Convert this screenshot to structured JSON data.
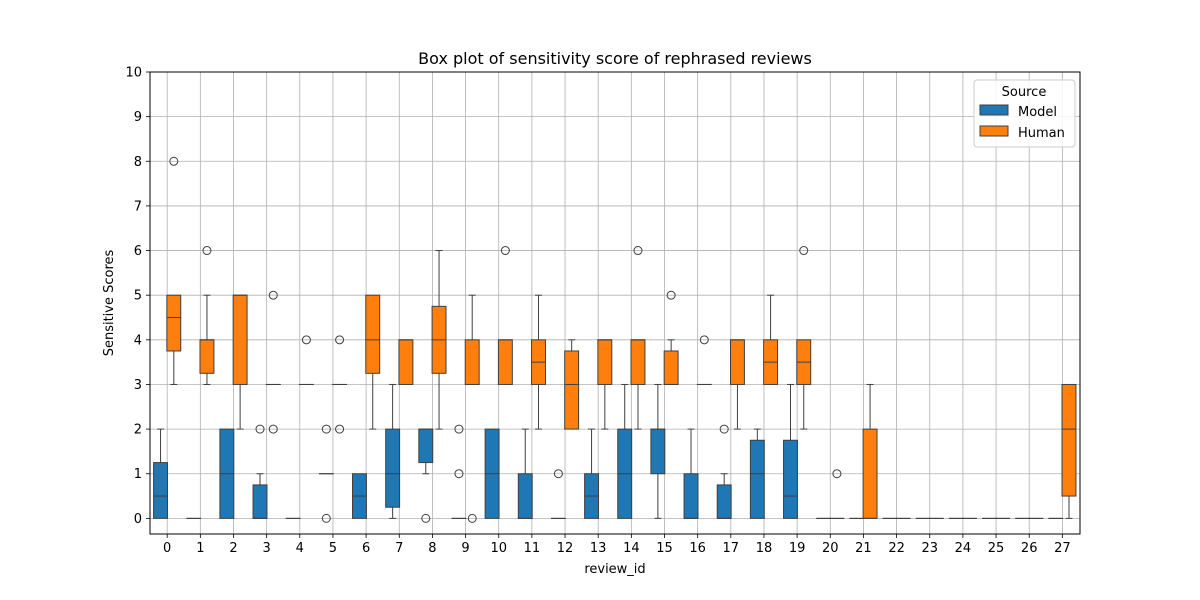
{
  "chart_data": {
    "type": "box",
    "title": "Box plot of sensitivity score of rephrased reviews",
    "xlabel": "review_id",
    "ylabel": "Sensitive Scores",
    "ylim": [
      -0.35,
      10
    ],
    "yticks": [
      0,
      1,
      2,
      3,
      4,
      5,
      6,
      7,
      8,
      9,
      10
    ],
    "grid": true,
    "legend": {
      "title": "Source",
      "position": "top-right"
    },
    "categories": [
      "0",
      "1",
      "2",
      "3",
      "4",
      "5",
      "6",
      "7",
      "8",
      "9",
      "10",
      "11",
      "12",
      "13",
      "14",
      "15",
      "16",
      "17",
      "18",
      "19",
      "20",
      "21",
      "22",
      "23",
      "24",
      "25",
      "26",
      "27"
    ],
    "series": [
      {
        "name": "Model",
        "color": "#1f77b4",
        "boxes": [
          {
            "min": 0,
            "q1": 0,
            "median": 0.5,
            "q3": 1.25,
            "max": 2,
            "outliers": []
          },
          {
            "min": 0,
            "q1": 0,
            "median": 0,
            "q3": 0,
            "max": 0,
            "outliers": []
          },
          {
            "min": 0,
            "q1": 0,
            "median": 1,
            "q3": 2,
            "max": 2,
            "outliers": []
          },
          {
            "min": 0,
            "q1": 0,
            "median": 0,
            "q3": 0.75,
            "max": 1,
            "outliers": [
              2
            ]
          },
          {
            "min": 0,
            "q1": 0,
            "median": 0,
            "q3": 0,
            "max": 0,
            "outliers": []
          },
          {
            "min": 1,
            "q1": 1,
            "median": 1,
            "q3": 1,
            "max": 1,
            "outliers": [
              2,
              0
            ]
          },
          {
            "min": 0,
            "q1": 0,
            "median": 0.5,
            "q3": 1,
            "max": 1,
            "outliers": []
          },
          {
            "min": 0,
            "q1": 0.25,
            "median": 1,
            "q3": 2,
            "max": 3,
            "outliers": []
          },
          {
            "min": 1,
            "q1": 1.25,
            "median": 2,
            "q3": 2,
            "max": 2,
            "outliers": [
              0
            ]
          },
          {
            "min": 0,
            "q1": 0,
            "median": 0,
            "q3": 0,
            "max": 0,
            "outliers": [
              2,
              1
            ]
          },
          {
            "min": 0,
            "q1": 0,
            "median": 1,
            "q3": 2,
            "max": 2,
            "outliers": []
          },
          {
            "min": 0,
            "q1": 0,
            "median": 0,
            "q3": 1,
            "max": 2,
            "outliers": []
          },
          {
            "min": 0,
            "q1": 0,
            "median": 0,
            "q3": 0,
            "max": 0,
            "outliers": [
              1
            ]
          },
          {
            "min": 0,
            "q1": 0,
            "median": 0.5,
            "q3": 1,
            "max": 2,
            "outliers": []
          },
          {
            "min": 0,
            "q1": 0,
            "median": 1,
            "q3": 2,
            "max": 3,
            "outliers": []
          },
          {
            "min": 0,
            "q1": 1,
            "median": 2,
            "q3": 2,
            "max": 3,
            "outliers": []
          },
          {
            "min": 0,
            "q1": 0,
            "median": 0,
            "q3": 1,
            "max": 2,
            "outliers": []
          },
          {
            "min": 0,
            "q1": 0,
            "median": 0,
            "q3": 0.75,
            "max": 1,
            "outliers": [
              2
            ]
          },
          {
            "min": 0,
            "q1": 0,
            "median": 1,
            "q3": 1.75,
            "max": 2,
            "outliers": []
          },
          {
            "min": 0,
            "q1": 0,
            "median": 0.5,
            "q3": 1.75,
            "max": 3,
            "outliers": []
          },
          {
            "min": 0,
            "q1": 0,
            "median": 0,
            "q3": 0,
            "max": 0,
            "outliers": []
          },
          {
            "min": 0,
            "q1": 0,
            "median": 0,
            "q3": 0,
            "max": 0,
            "outliers": []
          },
          {
            "min": 0,
            "q1": 0,
            "median": 0,
            "q3": 0,
            "max": 0,
            "outliers": []
          },
          {
            "min": 0,
            "q1": 0,
            "median": 0,
            "q3": 0,
            "max": 0,
            "outliers": []
          },
          {
            "min": 0,
            "q1": 0,
            "median": 0,
            "q3": 0,
            "max": 0,
            "outliers": []
          },
          {
            "min": 0,
            "q1": 0,
            "median": 0,
            "q3": 0,
            "max": 0,
            "outliers": []
          },
          {
            "min": 0,
            "q1": 0,
            "median": 0,
            "q3": 0,
            "max": 0,
            "outliers": []
          },
          {
            "min": 0,
            "q1": 0,
            "median": 0,
            "q3": 0,
            "max": 0,
            "outliers": []
          }
        ]
      },
      {
        "name": "Human",
        "color": "#ff7f0e",
        "boxes": [
          {
            "min": 3,
            "q1": 3.75,
            "median": 4.5,
            "q3": 5,
            "max": 5,
            "outliers": [
              8
            ]
          },
          {
            "min": 3,
            "q1": 3.25,
            "median": 4,
            "q3": 4,
            "max": 5,
            "outliers": [
              6
            ]
          },
          {
            "min": 2,
            "q1": 3,
            "median": 5,
            "q3": 5,
            "max": 5,
            "outliers": []
          },
          {
            "min": 3,
            "q1": 3,
            "median": 3,
            "q3": 3,
            "max": 3,
            "outliers": [
              5,
              2
            ]
          },
          {
            "min": 3,
            "q1": 3,
            "median": 3,
            "q3": 3,
            "max": 3,
            "outliers": [
              4
            ]
          },
          {
            "min": 3,
            "q1": 3,
            "median": 3,
            "q3": 3,
            "max": 3,
            "outliers": [
              4,
              2
            ]
          },
          {
            "min": 2,
            "q1": 3.25,
            "median": 4,
            "q3": 5,
            "max": 5,
            "outliers": []
          },
          {
            "min": 3,
            "q1": 3,
            "median": 4,
            "q3": 4,
            "max": 4,
            "outliers": []
          },
          {
            "min": 2,
            "q1": 3.25,
            "median": 4,
            "q3": 4.75,
            "max": 6,
            "outliers": []
          },
          {
            "min": 3,
            "q1": 3,
            "median": 3,
            "q3": 4,
            "max": 5,
            "outliers": [
              0
            ]
          },
          {
            "min": 3,
            "q1": 3,
            "median": 4,
            "q3": 4,
            "max": 4,
            "outliers": [
              6
            ]
          },
          {
            "min": 2,
            "q1": 3,
            "median": 3.5,
            "q3": 4,
            "max": 5,
            "outliers": []
          },
          {
            "min": 2,
            "q1": 2,
            "median": 3,
            "q3": 3.75,
            "max": 4,
            "outliers": []
          },
          {
            "min": 2,
            "q1": 3,
            "median": 4,
            "q3": 4,
            "max": 4,
            "outliers": []
          },
          {
            "min": 2,
            "q1": 3,
            "median": 4,
            "q3": 4,
            "max": 4,
            "outliers": [
              6
            ]
          },
          {
            "min": 3,
            "q1": 3,
            "median": 3,
            "q3": 3.75,
            "max": 4,
            "outliers": [
              5
            ]
          },
          {
            "min": 3,
            "q1": 3,
            "median": 3,
            "q3": 3,
            "max": 3,
            "outliers": [
              4
            ]
          },
          {
            "min": 2,
            "q1": 3,
            "median": 4,
            "q3": 4,
            "max": 4,
            "outliers": []
          },
          {
            "min": 3,
            "q1": 3,
            "median": 3.5,
            "q3": 4,
            "max": 5,
            "outliers": []
          },
          {
            "min": 2,
            "q1": 3,
            "median": 3.5,
            "q3": 4,
            "max": 4,
            "outliers": [
              6
            ]
          },
          {
            "min": 0,
            "q1": 0,
            "median": 0,
            "q3": 0,
            "max": 0,
            "outliers": [
              1
            ]
          },
          {
            "min": 0,
            "q1": 0,
            "median": 0,
            "q3": 2,
            "max": 3,
            "outliers": []
          },
          {
            "min": 0,
            "q1": 0,
            "median": 0,
            "q3": 0,
            "max": 0,
            "outliers": []
          },
          {
            "min": 0,
            "q1": 0,
            "median": 0,
            "q3": 0,
            "max": 0,
            "outliers": []
          },
          {
            "min": 0,
            "q1": 0,
            "median": 0,
            "q3": 0,
            "max": 0,
            "outliers": []
          },
          {
            "min": 0,
            "q1": 0,
            "median": 0,
            "q3": 0,
            "max": 0,
            "outliers": []
          },
          {
            "min": 0,
            "q1": 0,
            "median": 0,
            "q3": 0,
            "max": 0,
            "outliers": []
          },
          {
            "min": 0,
            "q1": 0.5,
            "median": 2,
            "q3": 3,
            "max": 3,
            "outliers": []
          }
        ]
      }
    ]
  }
}
